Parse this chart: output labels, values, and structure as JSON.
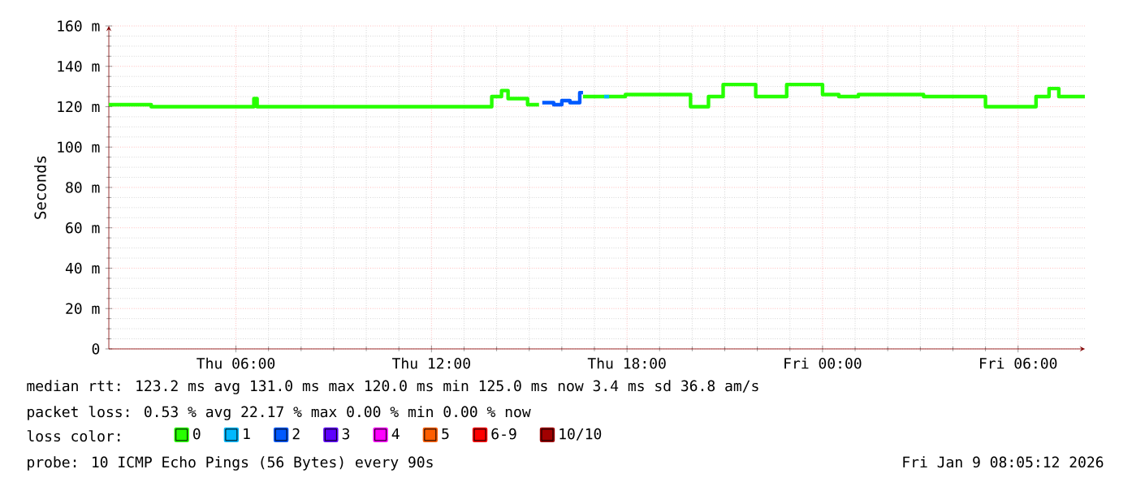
{
  "chart_data": {
    "type": "step",
    "ylabel": "Seconds",
    "legend_title": "loss color:",
    "xlim": [
      "2026-01-08T02:06",
      "2026-01-09T08:03"
    ],
    "ylim": [
      0,
      160
    ],
    "xticks": [
      {
        "value": "2026-01-08T06:00",
        "label": "Thu 06:00"
      },
      {
        "value": "2026-01-08T12:00",
        "label": "Thu 12:00"
      },
      {
        "value": "2026-01-08T18:00",
        "label": "Thu 18:00"
      },
      {
        "value": "2026-01-09T00:00",
        "label": "Fri 00:00"
      },
      {
        "value": "2026-01-09T06:00",
        "label": "Fri 06:00"
      }
    ],
    "yticks": [
      0,
      {
        "value": 20,
        "label": "20 m"
      },
      {
        "value": 40,
        "label": "40 m"
      },
      {
        "value": 60,
        "label": "60 m"
      },
      {
        "value": 80,
        "label": "80 m"
      },
      {
        "value": 100,
        "label": "100 m"
      },
      {
        "value": 120,
        "label": "120 m"
      },
      {
        "value": 140,
        "label": "140 m"
      },
      {
        "value": 160,
        "label": "160 m"
      }
    ],
    "grid": true,
    "legend": "bottom",
    "series": [
      {
        "name": "0",
        "color": "#26ff00",
        "x": [
          "2026-01-08T02:06",
          "2026-01-08T03:24",
          "2026-01-08T06:33",
          "2026-01-08T06:39",
          "2026-01-08T13:51",
          "2026-01-08T14:09",
          "2026-01-08T14:21",
          "2026-01-08T14:57",
          "2026-01-08T15:18",
          "2026-01-08T15:24",
          "2026-01-08T16:39",
          "2026-01-08T17:57",
          "2026-01-08T19:57",
          "2026-01-08T20:30",
          "2026-01-08T20:57",
          "2026-01-08T21:57",
          "2026-01-08T22:54",
          "2026-01-09T00:00",
          "2026-01-09T00:30",
          "2026-01-09T01:06",
          "2026-01-09T03:06",
          "2026-01-09T05:00",
          "2026-01-09T06:33",
          "2026-01-09T06:57",
          "2026-01-09T07:15",
          "2026-01-09T08:03"
        ],
        "values": [
          121,
          120,
          124,
          120,
          125,
          128,
          124,
          121,
          121,
          null,
          125,
          126,
          120,
          125,
          131,
          125,
          131,
          126,
          125,
          126,
          125,
          120,
          125,
          129,
          125,
          125
        ]
      },
      {
        "name": "1",
        "color": "#00b8ff",
        "x": [
          "2026-01-08T17:18",
          "2026-01-08T17:27"
        ],
        "values": [
          125,
          125
        ]
      },
      {
        "name": "2",
        "color": "#0059ff",
        "x": [
          "2026-01-08T15:24",
          "2026-01-08T15:45",
          "2026-01-08T16:00",
          "2026-01-08T16:15",
          "2026-01-08T16:33",
          "2026-01-08T16:39"
        ],
        "values": [
          122,
          121,
          123,
          122,
          127,
          127
        ]
      },
      {
        "name": "3",
        "color": "#5e00ff"
      },
      {
        "name": "4",
        "color": "#ff00ff"
      },
      {
        "name": "5",
        "color": "#ff5e00"
      },
      {
        "name": "6-9",
        "color": "#ff0000"
      },
      {
        "name": "10/10",
        "color": "#a10000"
      }
    ],
    "annotations": [
      "median rtt:  123.2 ms avg   131.0 ms max   120.0 ms min   125.0 ms now   3.4 ms sd   36.8   am/s",
      "packet loss: 0.53 % avg   22.17 % max   0.00 % min   0.00 % now",
      "probe:       10 ICMP Echo Pings (56 Bytes) every 90s",
      "Fri Jan  9 08:05:12 2026"
    ]
  }
}
